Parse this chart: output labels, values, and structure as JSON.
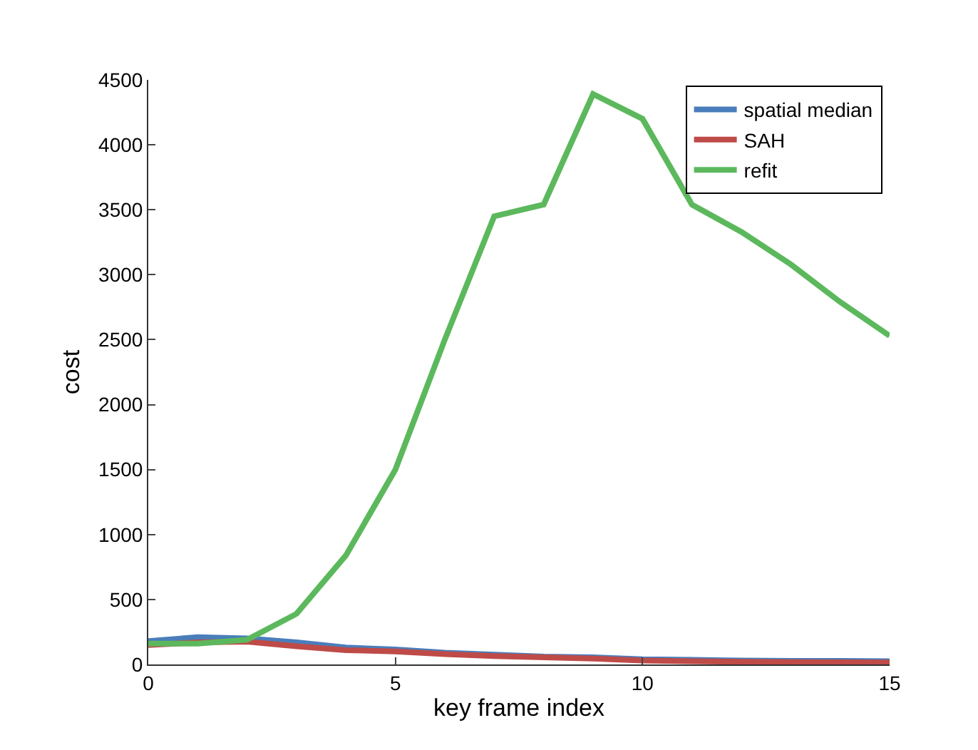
{
  "chart_data": {
    "type": "line",
    "xlabel": "key frame index",
    "ylabel": "cost",
    "x": [
      0,
      1,
      2,
      3,
      4,
      5,
      6,
      7,
      8,
      9,
      10,
      11,
      12,
      13,
      14,
      15
    ],
    "series": [
      {
        "name": "spatial median",
        "color": "#4a7ebb",
        "values": [
          180,
          210,
          200,
          170,
          130,
          115,
          90,
          75,
          60,
          55,
          40,
          35,
          30,
          28,
          27,
          25
        ]
      },
      {
        "name": "SAH",
        "color": "#be4b48",
        "values": [
          150,
          170,
          175,
          140,
          110,
          100,
          80,
          65,
          55,
          45,
          30,
          25,
          20,
          18,
          17,
          15
        ]
      },
      {
        "name": "refit",
        "color": "#5cb85c",
        "values": [
          160,
          160,
          190,
          390,
          840,
          1500,
          2500,
          3450,
          3540,
          4390,
          4200,
          3540,
          3330,
          3080,
          2790,
          2530
        ]
      }
    ],
    "xlim": [
      0,
      15
    ],
    "xticks": [
      0,
      5,
      10,
      15
    ],
    "ylim": [
      0,
      4500
    ],
    "yticks": [
      0,
      500,
      1000,
      1500,
      2000,
      2500,
      3000,
      3500,
      4000,
      4500
    ],
    "grid": false,
    "legend": "top right",
    "marker": "none",
    "line_style": "solid"
  }
}
